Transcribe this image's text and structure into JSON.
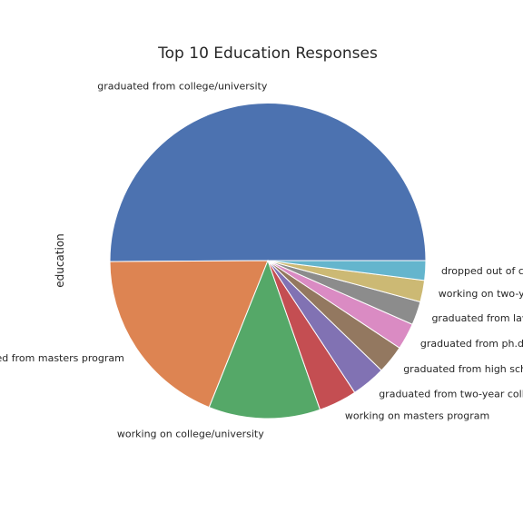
{
  "chart_data": {
    "type": "pie",
    "title": "Top 10 Education Responses",
    "ylabel": "education",
    "xlabel": "",
    "start_angle_deg": 0,
    "direction": "counterclockwise",
    "categories": [
      "graduated from college/university",
      "graduated from masters program",
      "working on college/university",
      "working on masters program",
      "graduated from two-year college",
      "graduated from high school",
      "graduated from ph.d program",
      "graduated from law school",
      "working on two-year college",
      "dropped out of college/university"
    ],
    "values": [
      50.0,
      18.8,
      11.4,
      3.9,
      3.5,
      2.9,
      2.7,
      2.4,
      2.2,
      2.0
    ],
    "colors": [
      "#4c72b0",
      "#dd8452",
      "#55a868",
      "#c44e52",
      "#8172b3",
      "#937860",
      "#da8bc3",
      "#8c8c8c",
      "#ccb974",
      "#64b5cd"
    ]
  }
}
